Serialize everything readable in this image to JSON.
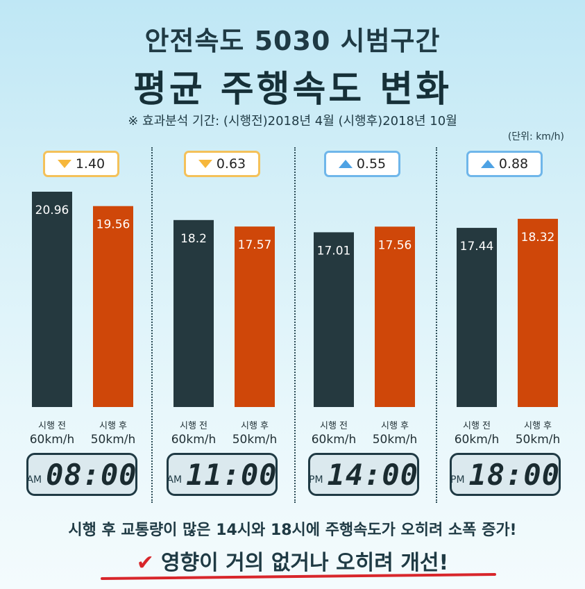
{
  "title_line1": "안전속도 5030 시범구간",
  "title_line2": "평균 주행속도 변화",
  "period_note": "※ 효과분석 기간: (시행전)2018년 4월 (시행후)2018년 10월",
  "unit_note": "(단위: km/h)",
  "chart_data": {
    "type": "bar",
    "categories": [
      "08:00",
      "11:00",
      "14:00",
      "18:00"
    ],
    "ylim": [
      0,
      22
    ],
    "series": [
      {
        "name": "시행 전 60km/h",
        "color": "#25393f",
        "values": [
          20.96,
          18.2,
          17.01,
          17.44
        ]
      },
      {
        "name": "시행 후 50km/h",
        "color": "#cf4709",
        "values": [
          19.56,
          17.57,
          17.56,
          18.32
        ]
      }
    ],
    "changes": [
      {
        "direction": "down",
        "value": "1.40"
      },
      {
        "direction": "down",
        "value": "0.63"
      },
      {
        "direction": "up",
        "value": "0.55"
      },
      {
        "direction": "up",
        "value": "0.88"
      }
    ],
    "value_labels": [
      [
        "20.96",
        "19.56"
      ],
      [
        "18.2",
        "17.57"
      ],
      [
        "17.01",
        "17.56"
      ],
      [
        "17.44",
        "18.32"
      ]
    ]
  },
  "bar_labels": {
    "before_line1": "시행 전",
    "before_line2": "60km/h",
    "after_line1": "시행 후",
    "after_line2": "50km/h"
  },
  "clocks": [
    {
      "ampm": "AM",
      "time": "08:00"
    },
    {
      "ampm": "AM",
      "time": "11:00"
    },
    {
      "ampm": "PM",
      "time": "14:00"
    },
    {
      "ampm": "PM",
      "time": "18:00"
    }
  ],
  "summary": "시행 후 교통량이 많은 14시와 18시에 주행속도가 오히려 소폭 증가!",
  "conclusion": "영향이 거의 없거나 오히려 개선!",
  "colors": {
    "badge_down": "#f6b73c",
    "badge_up": "#4ea2e4",
    "accent_red": "#d8262b"
  }
}
